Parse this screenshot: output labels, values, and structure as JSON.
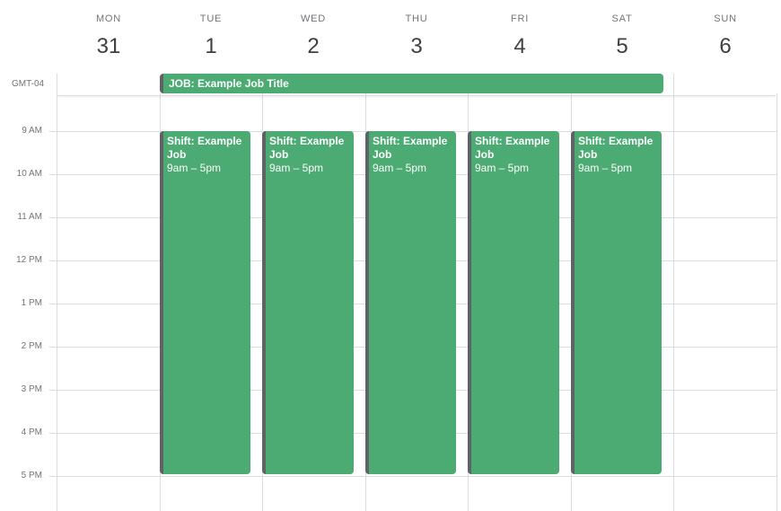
{
  "days": [
    {
      "dow": "MON",
      "num": "31"
    },
    {
      "dow": "TUE",
      "num": "1"
    },
    {
      "dow": "WED",
      "num": "2"
    },
    {
      "dow": "THU",
      "num": "3"
    },
    {
      "dow": "FRI",
      "num": "4"
    },
    {
      "dow": "SAT",
      "num": "5"
    },
    {
      "dow": "SUN",
      "num": "6"
    }
  ],
  "timezone": "GMT-04",
  "time_labels": [
    "9 AM",
    "10 AM",
    "11 AM",
    "12 PM",
    "1 PM",
    "2 PM",
    "3 PM",
    "4 PM",
    "5 PM"
  ],
  "all_day_event": {
    "title": "JOB: Example Job Title"
  },
  "shifts": [
    {
      "title": "Shift: Example Job",
      "time": "9am – 5pm"
    },
    {
      "title": "Shift: Example Job",
      "time": "9am – 5pm"
    },
    {
      "title": "Shift: Example Job",
      "time": "9am – 5pm"
    },
    {
      "title": "Shift: Example Job",
      "time": "9am – 5pm"
    },
    {
      "title": "Shift: Example Job",
      "time": "9am – 5pm"
    }
  ],
  "colors": {
    "event": "#4caa73",
    "event_border": "#5f6368"
  }
}
